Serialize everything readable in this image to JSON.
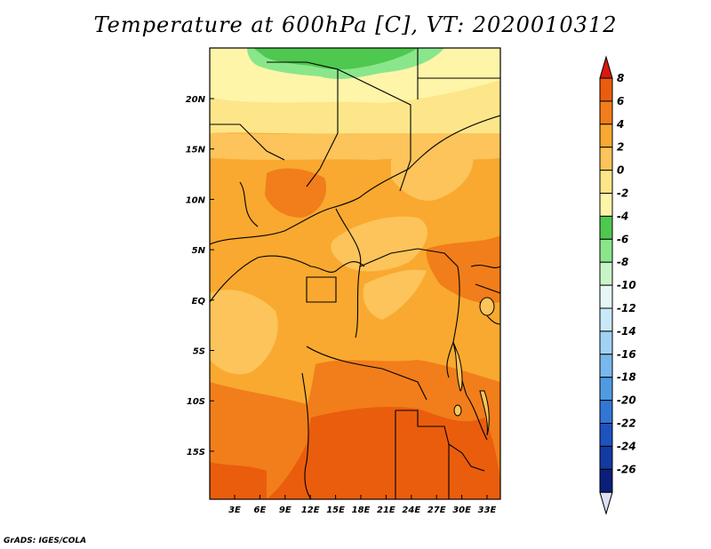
{
  "title": "Temperature at 600hPa [C], VT: 2020010312",
  "credit": "GrADS: IGES/COLA",
  "map": {
    "lon_labels": [
      "3E",
      "6E",
      "9E",
      "12E",
      "15E",
      "18E",
      "21E",
      "24E",
      "27E",
      "30E",
      "33E"
    ],
    "lat_labels": [
      "20N",
      "15N",
      "10N",
      "5N",
      "EQ",
      "5S",
      "10S",
      "15S"
    ],
    "field_bands": [
      {
        "name": "north-green",
        "color": "#4ec84e"
      },
      {
        "name": "north-lightgreen",
        "color": "#8ae68a"
      },
      {
        "name": "cold-pale",
        "color": "#fff5a8"
      },
      {
        "name": "pale-yellow",
        "color": "#fde68a"
      },
      {
        "name": "light-orange",
        "color": "#fcc45a"
      },
      {
        "name": "orange",
        "color": "#f9a92f"
      },
      {
        "name": "dark-orange",
        "color": "#f17e1a"
      },
      {
        "name": "red-orange",
        "color": "#ea5d0d"
      }
    ]
  },
  "colorbar": {
    "levels": [
      "8",
      "6",
      "4",
      "2",
      "0",
      "-2",
      "-4",
      "-6",
      "-8",
      "-10",
      "-12",
      "-14",
      "-16",
      "-18",
      "-20",
      "-22",
      "-24",
      "-26"
    ],
    "colors": [
      "#d7190f",
      "#ea5d0d",
      "#f17e1a",
      "#f9a92f",
      "#fcc45a",
      "#fde68a",
      "#fff5a8",
      "#4ec84e",
      "#8ae68a",
      "#c8f5c8",
      "#e6f8f6",
      "#c9e8fa",
      "#a1d2f5",
      "#78b8ee",
      "#4f9be3",
      "#3377d6",
      "#1e53bf",
      "#143aa3",
      "#0b1f7a",
      "#dde0f5"
    ]
  }
}
